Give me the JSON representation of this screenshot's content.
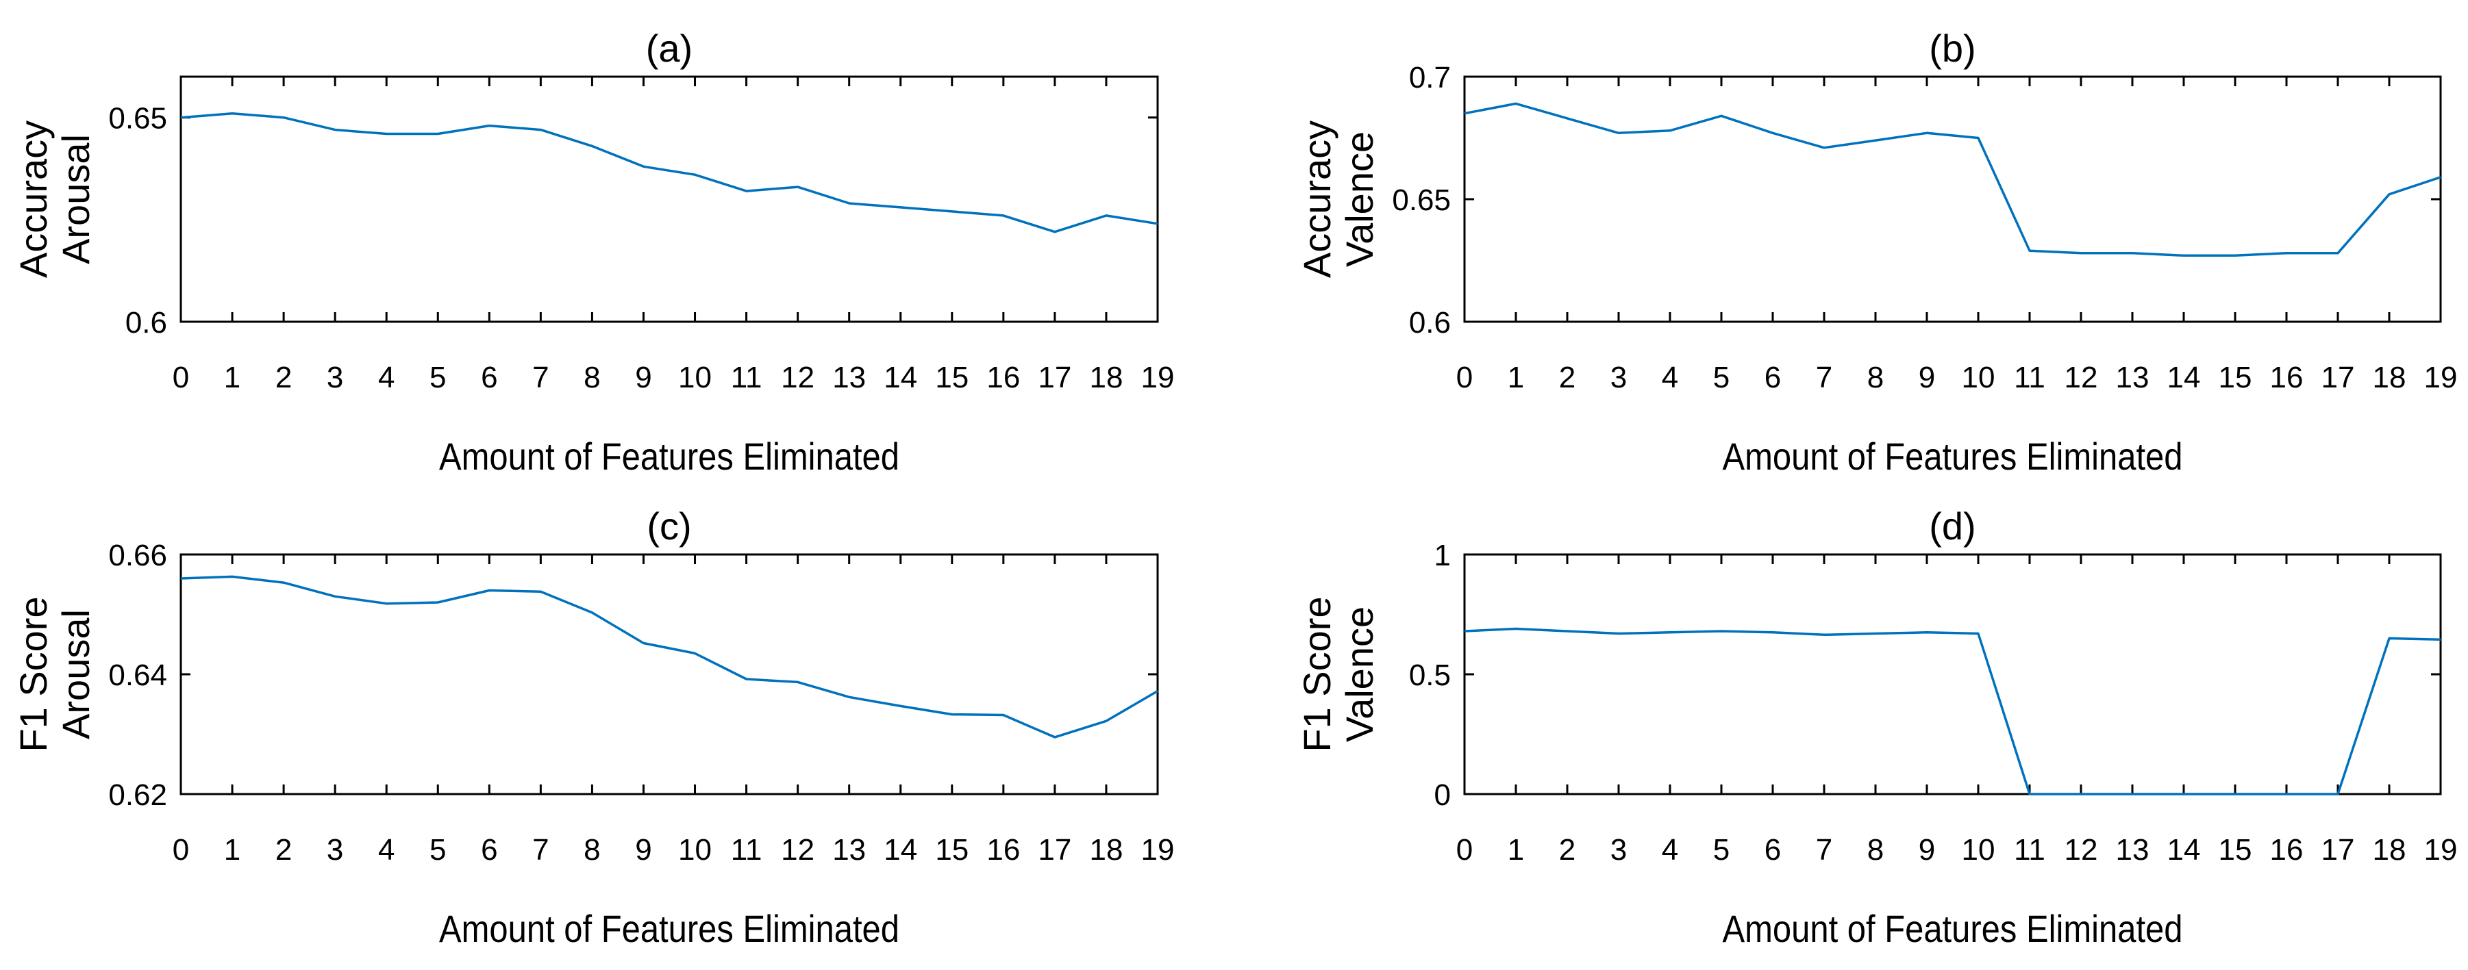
{
  "chart_data": [
    {
      "type": "line",
      "title": "(a)",
      "xlabel": "Amount of Features Eliminated",
      "ylabel": [
        "Accuracy",
        "Arousal"
      ],
      "ylim": [
        0.6,
        0.66
      ],
      "yticks": [
        0.6,
        0.65
      ],
      "ytick_labels": [
        "0.6",
        "0.65"
      ],
      "x": [
        0,
        1,
        2,
        3,
        4,
        5,
        6,
        7,
        8,
        9,
        10,
        11,
        12,
        13,
        14,
        15,
        16,
        17,
        18,
        19
      ],
      "xtick_labels": [
        "0",
        "1",
        "2",
        "3",
        "4",
        "5",
        "6",
        "7",
        "8",
        "9",
        "10",
        "11",
        "12",
        "13",
        "14",
        "15",
        "16",
        "17",
        "18",
        "19"
      ],
      "series": [
        {
          "name": "Accuracy Arousal",
          "color": "#0072bd",
          "values": [
            0.65,
            0.651,
            0.65,
            0.647,
            0.646,
            0.646,
            0.648,
            0.647,
            0.643,
            0.638,
            0.636,
            0.632,
            0.633,
            0.629,
            0.628,
            0.627,
            0.626,
            0.622,
            0.626,
            0.624
          ]
        }
      ]
    },
    {
      "type": "line",
      "title": "(b)",
      "xlabel": "Amount of Features Eliminated",
      "ylabel": [
        "Accuracy",
        "Valence"
      ],
      "ylim": [
        0.6,
        0.7
      ],
      "yticks": [
        0.6,
        0.65,
        0.7
      ],
      "ytick_labels": [
        "0.6",
        "0.65",
        "0.7"
      ],
      "x": [
        0,
        1,
        2,
        3,
        4,
        5,
        6,
        7,
        8,
        9,
        10,
        11,
        12,
        13,
        14,
        15,
        16,
        17,
        18,
        19
      ],
      "xtick_labels": [
        "0",
        "1",
        "2",
        "3",
        "4",
        "5",
        "6",
        "7",
        "8",
        "9",
        "10",
        "11",
        "12",
        "13",
        "14",
        "15",
        "16",
        "17",
        "18",
        "19"
      ],
      "series": [
        {
          "name": "Accuracy Valence",
          "color": "#0072bd",
          "values": [
            0.685,
            0.689,
            0.683,
            0.677,
            0.678,
            0.684,
            0.677,
            0.671,
            0.674,
            0.677,
            0.675,
            0.629,
            0.628,
            0.628,
            0.627,
            0.627,
            0.628,
            0.628,
            0.652,
            0.659
          ]
        }
      ]
    },
    {
      "type": "line",
      "title": "(c)",
      "xlabel": "Amount of Features Eliminated",
      "ylabel": [
        "F1 Score",
        "Arousal"
      ],
      "ylim": [
        0.62,
        0.66
      ],
      "yticks": [
        0.62,
        0.64,
        0.66
      ],
      "ytick_labels": [
        "0.62",
        "0.64",
        "0.66"
      ],
      "x": [
        0,
        1,
        2,
        3,
        4,
        5,
        6,
        7,
        8,
        9,
        10,
        11,
        12,
        13,
        14,
        15,
        16,
        17,
        18,
        19
      ],
      "xtick_labels": [
        "0",
        "1",
        "2",
        "3",
        "4",
        "5",
        "6",
        "7",
        "8",
        "9",
        "10",
        "11",
        "12",
        "13",
        "14",
        "15",
        "16",
        "17",
        "18",
        "19"
      ],
      "series": [
        {
          "name": "F1 Score Arousal",
          "color": "#0072bd",
          "values": [
            0.656,
            0.6563,
            0.6553,
            0.653,
            0.6518,
            0.652,
            0.654,
            0.6538,
            0.6503,
            0.6452,
            0.6435,
            0.6392,
            0.6387,
            0.6362,
            0.6347,
            0.6333,
            0.6332,
            0.6295,
            0.6322,
            0.6372
          ]
        }
      ]
    },
    {
      "type": "line",
      "title": "(d)",
      "xlabel": "Amount of Features Eliminated",
      "ylabel": [
        "F1 Score",
        "Valence"
      ],
      "ylim": [
        0,
        1
      ],
      "yticks": [
        0,
        0.5,
        1
      ],
      "ytick_labels": [
        "0",
        "0.5",
        "1"
      ],
      "x": [
        0,
        1,
        2,
        3,
        4,
        5,
        6,
        7,
        8,
        9,
        10,
        11,
        12,
        13,
        14,
        15,
        16,
        17,
        18,
        19
      ],
      "xtick_labels": [
        "0",
        "1",
        "2",
        "3",
        "4",
        "5",
        "6",
        "7",
        "8",
        "9",
        "10",
        "11",
        "12",
        "13",
        "14",
        "15",
        "16",
        "17",
        "18",
        "19"
      ],
      "series": [
        {
          "name": "F1 Score Valence",
          "color": "#0072bd",
          "values": [
            0.68,
            0.69,
            0.68,
            0.67,
            0.675,
            0.68,
            0.675,
            0.665,
            0.67,
            0.675,
            0.67,
            0,
            0,
            0,
            0,
            0,
            0,
            0,
            0.65,
            0.645
          ]
        }
      ]
    }
  ]
}
